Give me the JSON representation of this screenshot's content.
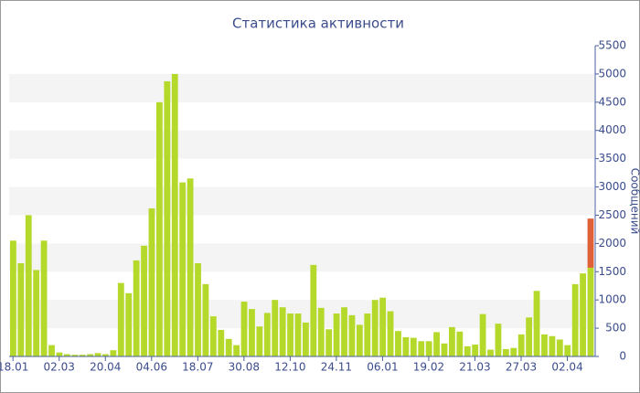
{
  "chart_data": {
    "type": "bar",
    "title": "Статистика активности",
    "y_label": "Сообщений",
    "categories": [
      "18.01",
      null,
      null,
      null,
      null,
      null,
      "02.03",
      null,
      null,
      null,
      null,
      null,
      "20.04",
      null,
      null,
      null,
      null,
      null,
      "04.06",
      null,
      null,
      null,
      null,
      null,
      "18.07",
      null,
      null,
      null,
      null,
      null,
      "30.08",
      null,
      null,
      null,
      null,
      null,
      "12.10",
      null,
      null,
      null,
      null,
      null,
      "24.11",
      null,
      null,
      null,
      null,
      null,
      "06.01",
      null,
      null,
      null,
      null,
      null,
      "19.02",
      null,
      null,
      null,
      null,
      null,
      "21.03",
      null,
      null,
      null,
      null,
      null,
      "27.03",
      null,
      null,
      null,
      null,
      null,
      "02.04",
      null,
      null,
      null
    ],
    "series": [
      {
        "color": "#b5d92b",
        "values": [
          2050,
          1650,
          2500,
          1530,
          2050,
          200,
          70,
          40,
          30,
          30,
          40,
          60,
          40,
          110,
          1300,
          1120,
          1700,
          1960,
          2620,
          4500,
          4870,
          5000,
          3080,
          3150,
          1650,
          1280,
          710,
          470,
          310,
          200,
          970,
          840,
          530,
          770,
          1000,
          870,
          760,
          760,
          600,
          1620,
          860,
          480,
          760,
          870,
          730,
          560,
          760,
          1000,
          1040,
          800,
          450,
          340,
          330,
          270,
          270,
          430,
          230,
          520,
          440,
          180,
          210,
          750,
          120,
          580,
          130,
          150,
          390,
          690,
          1160,
          390,
          360,
          300,
          200,
          1280,
          1470,
          1570
        ]
      },
      {
        "color": "#e0603a",
        "values": [
          null,
          null,
          null,
          null,
          null,
          null,
          null,
          null,
          null,
          null,
          null,
          null,
          null,
          null,
          null,
          null,
          null,
          null,
          null,
          null,
          null,
          null,
          null,
          null,
          null,
          null,
          null,
          null,
          null,
          null,
          null,
          null,
          null,
          null,
          null,
          null,
          null,
          null,
          null,
          null,
          null,
          null,
          null,
          null,
          null,
          null,
          null,
          null,
          null,
          null,
          null,
          null,
          null,
          null,
          null,
          null,
          null,
          null,
          null,
          null,
          null,
          null,
          null,
          null,
          null,
          null,
          null,
          null,
          null,
          null,
          null,
          null,
          null,
          null,
          null,
          870
        ]
      }
    ],
    "ylim": [
      0,
      5500
    ],
    "yticks": [
      0,
      500,
      1000,
      1500,
      2000,
      2500,
      3000,
      3500,
      4000,
      4500,
      5000,
      5500
    ],
    "grid": "bands",
    "y_axis_side": "right"
  }
}
